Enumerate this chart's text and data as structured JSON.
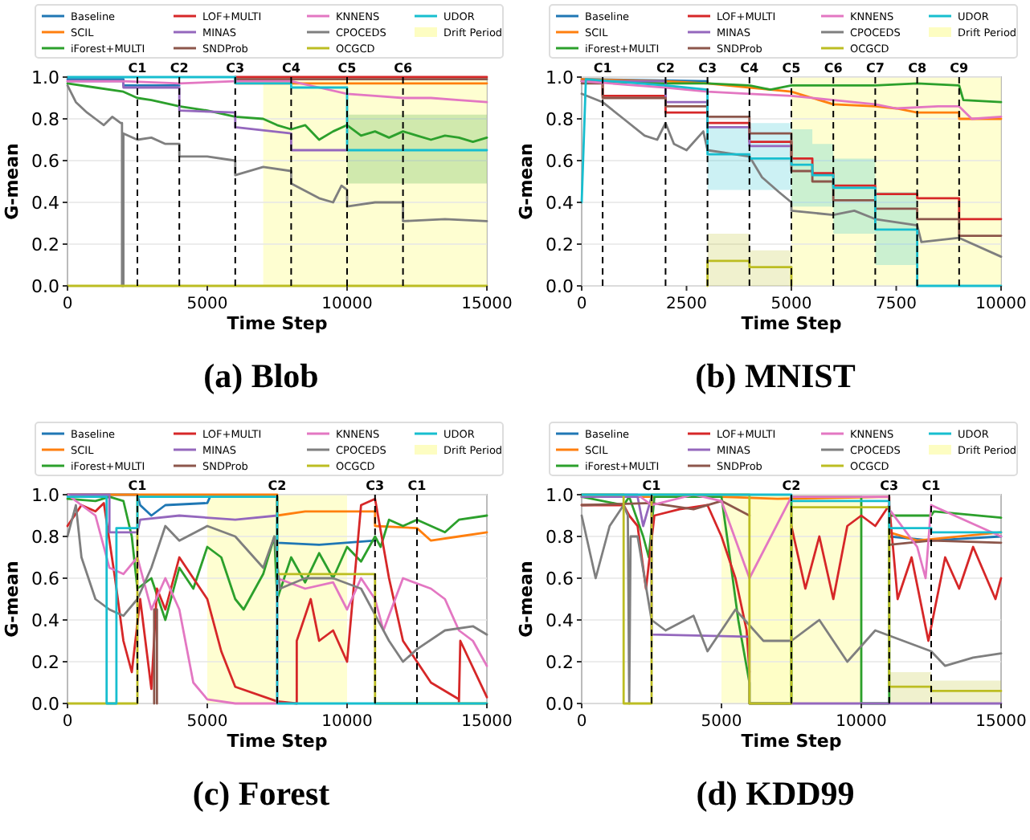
{
  "chart_data": [
    {
      "type": "line",
      "title": "(a) Blob",
      "xlabel": "Time Step",
      "ylabel": "G-mean",
      "xlim": [
        0,
        15000
      ],
      "xticks": [
        0,
        5000,
        10000,
        15000
      ],
      "ylim": [
        0,
        1
      ],
      "yticks": [
        {
          "value": 0,
          "label": "0.0"
        },
        {
          "value": 0.2,
          "label": "0.2"
        },
        {
          "value": 0.4,
          "label": "0.4"
        },
        {
          "value": 0.6,
          "label": "0.6"
        },
        {
          "value": 0.8,
          "label": "0.8"
        },
        {
          "value": 1,
          "label": "1.0"
        }
      ],
      "grid": "y",
      "legend": "top",
      "marker": "none",
      "line_style": "solid",
      "bands": [
        {
          "axis": "x",
          "from": 7000,
          "to": 15000,
          "label": "Drift Period",
          "color": "#fdfdc2"
        }
      ],
      "ref_lines": [
        {
          "axis": "x",
          "value": 2500,
          "label": "C1",
          "color": "#000000",
          "line_style": "dashed"
        },
        {
          "axis": "x",
          "value": 4000,
          "label": "C2",
          "color": "#000000",
          "line_style": "dashed"
        },
        {
          "axis": "x",
          "value": 6000,
          "label": "C3",
          "color": "#000000",
          "line_style": "dashed"
        },
        {
          "axis": "x",
          "value": 8000,
          "label": "C4",
          "color": "#000000",
          "line_style": "dashed"
        },
        {
          "axis": "x",
          "value": 10000,
          "label": "C5",
          "color": "#000000",
          "line_style": "dashed"
        },
        {
          "axis": "x",
          "value": 12000,
          "label": "C6",
          "color": "#000000",
          "line_style": "dashed"
        }
      ],
      "series": [
        {
          "name": "Baseline",
          "color": "#1f77b4",
          "x": [
            0,
            2000,
            2000,
            4000
          ],
          "values": [
            0.99,
            0.99,
            0.96,
            0.96
          ]
        },
        {
          "name": "SCIL",
          "color": "#ff7f0e",
          "x": [
            6000,
            15000
          ],
          "values": [
            0.97,
            0.97
          ]
        },
        {
          "name": "iForest+MULTI",
          "color": "#2ca02c",
          "x": [
            0,
            1000,
            2000,
            2500,
            3000,
            4000,
            5000,
            6000,
            7000,
            7500,
            8000,
            8500,
            9000,
            9500,
            10000,
            10500,
            11000,
            11500,
            12000,
            12500,
            13000,
            13500,
            14000,
            14500,
            15000
          ],
          "values": [
            0.97,
            0.95,
            0.93,
            0.9,
            0.89,
            0.86,
            0.84,
            0.81,
            0.8,
            0.77,
            0.75,
            0.77,
            0.7,
            0.74,
            0.77,
            0.72,
            0.74,
            0.71,
            0.74,
            0.72,
            0.7,
            0.72,
            0.71,
            0.69,
            0.71
          ],
          "lower": [
            null,
            null,
            null,
            null,
            null,
            null,
            null,
            null,
            null,
            null,
            null,
            null,
            null,
            null,
            0.49,
            0.49,
            0.49,
            0.49,
            0.49,
            0.49,
            0.49,
            0.49,
            0.49,
            0.49,
            0.49
          ],
          "upper": [
            null,
            null,
            null,
            null,
            null,
            null,
            null,
            null,
            null,
            null,
            null,
            null,
            null,
            null,
            0.82,
            0.82,
            0.82,
            0.82,
            0.82,
            0.82,
            0.82,
            0.82,
            0.82,
            0.82,
            0.82
          ]
        },
        {
          "name": "LOF+MULTI",
          "color": "#d62728",
          "x": [
            6000,
            15000
          ],
          "values": [
            1,
            1
          ]
        },
        {
          "name": "MINAS",
          "color": "#9467bd",
          "x": [
            0,
            2000,
            2000,
            4000,
            4000,
            6000,
            6000,
            8000,
            8000,
            10000
          ],
          "values": [
            0.98,
            0.98,
            0.95,
            0.95,
            0.84,
            0.83,
            0.76,
            0.73,
            0.65,
            0.65
          ]
        },
        {
          "name": "SNDProb",
          "color": "#8c564b",
          "x": [
            6000,
            15000
          ],
          "values": [
            0.99,
            0.99
          ]
        },
        {
          "name": "KNNENS",
          "color": "#e377c2",
          "x": [
            0,
            2000,
            4000,
            6000,
            8000,
            9000,
            10000,
            11000,
            12000,
            13000,
            14000,
            15000
          ],
          "values": [
            0.98,
            0.98,
            0.97,
            0.98,
            0.98,
            0.95,
            0.92,
            0.91,
            0.9,
            0.9,
            0.89,
            0.88
          ]
        },
        {
          "name": "CPOCEDS",
          "color": "#7f7f7f",
          "x": [
            0,
            300,
            700,
            1000,
            1300,
            1600,
            1900,
            1950,
            1950,
            2000,
            2000,
            2500,
            3000,
            3500,
            4000,
            4000,
            5000,
            6000,
            6000,
            7000,
            8000,
            8000,
            9000,
            9500,
            9800,
            10000,
            10000,
            11000,
            12000,
            12000,
            13500,
            15000
          ],
          "values": [
            0.96,
            0.88,
            0.83,
            0.8,
            0.77,
            0.81,
            0.78,
            0.78,
            0,
            0,
            0.73,
            0.7,
            0.71,
            0.68,
            0.68,
            0.62,
            0.62,
            0.6,
            0.53,
            0.57,
            0.55,
            0.49,
            0.42,
            0.4,
            0.48,
            0.46,
            0.38,
            0.4,
            0.4,
            0.31,
            0.32,
            0.31
          ]
        },
        {
          "name": "OCGCD",
          "color": "#bcbd22",
          "x": [
            0,
            15000
          ],
          "values": [
            0,
            0
          ]
        },
        {
          "name": "UDOR",
          "color": "#17becf",
          "x": [
            0,
            6000,
            6000,
            8000,
            8000,
            10000,
            10000,
            15000
          ],
          "values": [
            1,
            1,
            0.97,
            0.97,
            0.95,
            0.95,
            0.65,
            0.65
          ]
        }
      ]
    },
    {
      "type": "line",
      "title": "(b) MNIST",
      "xlabel": "Time Step",
      "ylabel": "G-mean",
      "xlim": [
        0,
        10000
      ],
      "xticks": [
        0,
        2500,
        5000,
        7500,
        10000
      ],
      "ylim": [
        0,
        1
      ],
      "yticks": [
        {
          "value": 0,
          "label": "0.0"
        },
        {
          "value": 0.2,
          "label": "0.2"
        },
        {
          "value": 0.4,
          "label": "0.4"
        },
        {
          "value": 0.6,
          "label": "0.6"
        },
        {
          "value": 0.8,
          "label": "0.8"
        },
        {
          "value": 1,
          "label": "1.0"
        }
      ],
      "grid": "y",
      "legend": "top",
      "marker": "none",
      "line_style": "solid",
      "bands": [
        {
          "axis": "x",
          "from": 5000,
          "to": 10000,
          "label": "Drift Period",
          "color": "#fdfdc2"
        }
      ],
      "ref_lines": [
        {
          "axis": "x",
          "value": 500,
          "label": "C1",
          "color": "#000000",
          "line_style": "dashed"
        },
        {
          "axis": "x",
          "value": 2000,
          "label": "C2",
          "color": "#000000",
          "line_style": "dashed"
        },
        {
          "axis": "x",
          "value": 3000,
          "label": "C3",
          "color": "#000000",
          "line_style": "dashed"
        },
        {
          "axis": "x",
          "value": 4000,
          "label": "C4",
          "color": "#000000",
          "line_style": "dashed"
        },
        {
          "axis": "x",
          "value": 5000,
          "label": "C5",
          "color": "#000000",
          "line_style": "dashed"
        },
        {
          "axis": "x",
          "value": 6000,
          "label": "C6",
          "color": "#000000",
          "line_style": "dashed"
        },
        {
          "axis": "x",
          "value": 7000,
          "label": "C7",
          "color": "#000000",
          "line_style": "dashed"
        },
        {
          "axis": "x",
          "value": 8000,
          "label": "C8",
          "color": "#000000",
          "line_style": "dashed"
        },
        {
          "axis": "x",
          "value": 9000,
          "label": "C9",
          "color": "#000000",
          "line_style": "dashed"
        }
      ],
      "series": [
        {
          "name": "Baseline",
          "color": "#1f77b4",
          "x": [
            0,
            3000
          ],
          "values": [
            0.99,
            0.98
          ]
        },
        {
          "name": "SCIL",
          "color": "#ff7f0e",
          "x": [
            0,
            2000,
            3000,
            4000,
            5000,
            5500,
            6000,
            7000,
            7500,
            8000,
            9000,
            9000,
            10000
          ],
          "values": [
            0.99,
            0.98,
            0.97,
            0.95,
            0.93,
            0.9,
            0.87,
            0.86,
            0.85,
            0.83,
            0.83,
            0.8,
            0.8
          ]
        },
        {
          "name": "iForest+MULTI",
          "color": "#2ca02c",
          "x": [
            0,
            2000,
            3000,
            4000,
            4500,
            5000,
            6000,
            7000,
            8000,
            9000,
            9100,
            10000
          ],
          "values": [
            0.98,
            0.97,
            0.97,
            0.96,
            0.94,
            0.96,
            0.96,
            0.96,
            0.97,
            0.96,
            0.89,
            0.88
          ]
        },
        {
          "name": "LOF+MULTI",
          "color": "#d62728",
          "x": [
            0,
            500,
            500,
            2000,
            2000,
            3000,
            3000,
            4000,
            4000,
            5000,
            5000,
            5500,
            5500,
            6000,
            6000,
            7000,
            7000,
            8000,
            8000,
            9000,
            9000,
            10000
          ],
          "values": [
            0.98,
            0.98,
            0.91,
            0.91,
            0.83,
            0.83,
            0.78,
            0.78,
            0.69,
            0.69,
            0.61,
            0.61,
            0.54,
            0.54,
            0.48,
            0.48,
            0.44,
            0.44,
            0.42,
            0.42,
            0.32,
            0.32
          ]
        },
        {
          "name": "MINAS",
          "color": "#9467bd",
          "x": [
            0,
            2000,
            2000,
            3000,
            3000,
            4000,
            4000,
            5000
          ],
          "values": [
            0.98,
            0.98,
            0.88,
            0.88,
            0.76,
            0.76,
            0.67,
            0.67
          ]
        },
        {
          "name": "SNDProb",
          "color": "#8c564b",
          "x": [
            0,
            500,
            500,
            2000,
            2000,
            3000,
            3000,
            4000,
            4000,
            5000,
            5000,
            5500,
            5500,
            6000,
            6000,
            7000,
            7000,
            8000,
            8000,
            9000,
            9000,
            10000
          ],
          "values": [
            0.97,
            0.97,
            0.9,
            0.9,
            0.86,
            0.86,
            0.81,
            0.81,
            0.73,
            0.73,
            0.55,
            0.55,
            0.5,
            0.5,
            0.41,
            0.41,
            0.37,
            0.37,
            0.32,
            0.32,
            0.24,
            0.24
          ]
        },
        {
          "name": "KNNENS",
          "color": "#e377c2",
          "x": [
            0,
            2000,
            3000,
            4000,
            5000,
            6000,
            7000,
            7500,
            8500,
            9000,
            9300,
            10000
          ],
          "values": [
            0.98,
            0.95,
            0.93,
            0.92,
            0.91,
            0.89,
            0.87,
            0.85,
            0.86,
            0.86,
            0.8,
            0.81
          ]
        },
        {
          "name": "CPOCEDS",
          "color": "#7f7f7f",
          "x": [
            0,
            500,
            1000,
            1500,
            1800,
            2000,
            2200,
            2500,
            2900,
            3000,
            4000,
            4300,
            4700,
            5000,
            5000,
            6000,
            6500,
            7000,
            8000,
            8100,
            9000,
            10000
          ],
          "values": [
            0.92,
            0.88,
            0.8,
            0.72,
            0.7,
            0.78,
            0.68,
            0.65,
            0.74,
            0.65,
            0.62,
            0.52,
            0.45,
            0.4,
            0.36,
            0.34,
            0.36,
            0.32,
            0.29,
            0.21,
            0.23,
            0.14
          ]
        },
        {
          "name": "OCGCD",
          "color": "#bcbd22",
          "x": [
            3000,
            3000,
            4000,
            4000,
            5000,
            5000
          ],
          "values": [
            0,
            0.12,
            0.12,
            0.09,
            0.09,
            0
          ],
          "lower": [
            null,
            0,
            0,
            0,
            0,
            null
          ],
          "upper": [
            null,
            0.25,
            0.25,
            0.17,
            0.17,
            null
          ]
        },
        {
          "name": "UDOR",
          "color": "#17becf",
          "x": [
            0,
            100,
            2000,
            3000,
            3000,
            4000,
            4000,
            5000,
            5000,
            5500,
            5500,
            6000,
            6000,
            7000,
            7000,
            8000,
            8000,
            10000
          ],
          "values": [
            0.4,
            0.99,
            0.96,
            0.94,
            0.63,
            0.63,
            0.61,
            0.61,
            0.58,
            0.58,
            0.53,
            0.53,
            0.47,
            0.47,
            0.27,
            0.27,
            0,
            0
          ],
          "lower": [
            null,
            null,
            null,
            null,
            0.46,
            0.46,
            0.46,
            0.46,
            0.38,
            0.38,
            0.38,
            0.38,
            0.25,
            0.25,
            0.1,
            0.1,
            null,
            null
          ],
          "upper": [
            null,
            null,
            null,
            null,
            0.76,
            0.76,
            0.78,
            0.78,
            0.75,
            0.75,
            0.68,
            0.68,
            0.61,
            0.61,
            0.45,
            0.45,
            null,
            null
          ]
        }
      ]
    },
    {
      "type": "line",
      "title": "(c) Forest",
      "xlabel": "Time Step",
      "ylabel": "G-mean",
      "xlim": [
        0,
        15000
      ],
      "xticks": [
        0,
        5000,
        10000,
        15000
      ],
      "ylim": [
        0,
        1
      ],
      "yticks": [
        {
          "value": 0,
          "label": "0.0"
        },
        {
          "value": 0.2,
          "label": "0.2"
        },
        {
          "value": 0.4,
          "label": "0.4"
        },
        {
          "value": 0.6,
          "label": "0.6"
        },
        {
          "value": 0.8,
          "label": "0.8"
        },
        {
          "value": 1,
          "label": "1.0"
        }
      ],
      "grid": "y",
      "legend": "top",
      "marker": "none",
      "line_style": "solid",
      "bands": [
        {
          "axis": "x",
          "from": 5000,
          "to": 10000,
          "label": "Drift Period",
          "color": "#fdfdc2"
        }
      ],
      "ref_lines": [
        {
          "axis": "x",
          "value": 2500,
          "label": "C1",
          "color": "#000000",
          "line_style": "dashed"
        },
        {
          "axis": "x",
          "value": 7500,
          "label": "C2",
          "color": "#000000",
          "line_style": "dashed"
        },
        {
          "axis": "x",
          "value": 11000,
          "label": "C3",
          "color": "#000000",
          "line_style": "dashed"
        },
        {
          "axis": "x",
          "value": 12500,
          "label": "C1",
          "color": "#000000",
          "line_style": "dashed"
        }
      ],
      "series": [
        {
          "name": "Baseline",
          "color": "#1f77b4",
          "x": [
            0,
            2500,
            2600,
            3000,
            3500,
            5000,
            5100,
            7500,
            7500,
            9000,
            11000
          ],
          "values": [
            1,
            1,
            0.95,
            0.9,
            0.95,
            0.96,
            0.99,
            0.99,
            0.77,
            0.76,
            0.78
          ]
        },
        {
          "name": "SCIL",
          "color": "#ff7f0e",
          "x": [
            0,
            7500,
            7500,
            8500,
            10000,
            11000,
            11000,
            12500,
            13000,
            14000,
            15000
          ],
          "values": [
            1,
            1,
            0.9,
            0.92,
            0.92,
            0.92,
            0.85,
            0.84,
            0.78,
            0.8,
            0.82
          ]
        },
        {
          "name": "iForest+MULTI",
          "color": "#2ca02c",
          "x": [
            0,
            1000,
            1500,
            2000,
            2300,
            2500,
            3000,
            3500,
            4000,
            4500,
            5000,
            5500,
            6000,
            6300,
            7000,
            7400,
            7500,
            8000,
            8500,
            9000,
            9500,
            10000,
            10500,
            11000,
            11200,
            11500,
            12000,
            12500,
            13500,
            14000,
            15000
          ],
          "values": [
            0.98,
            0.97,
            0.99,
            0.97,
            0.8,
            0.55,
            0.6,
            0.4,
            0.65,
            0.55,
            0.75,
            0.7,
            0.5,
            0.45,
            0.62,
            0.8,
            0.5,
            0.7,
            0.58,
            0.72,
            0.6,
            0.75,
            0.68,
            0.8,
            0.75,
            0.88,
            0.85,
            0.88,
            0.82,
            0.88,
            0.9
          ]
        },
        {
          "name": "LOF+MULTI",
          "color": "#d62728",
          "x": [
            0,
            500,
            1000,
            1300,
            1700,
            2000,
            2300,
            2600,
            3000,
            3200,
            3500,
            4000,
            4500,
            5000,
            5500,
            6000,
            7500,
            8200,
            8200,
            8700,
            9000,
            9500,
            10000,
            10500,
            11000,
            11500,
            12000,
            13000,
            14000,
            14000,
            14050,
            15000
          ],
          "values": [
            0.85,
            0.95,
            0.92,
            0.96,
            0.6,
            0.3,
            0.15,
            0.5,
            0.07,
            0.55,
            0.45,
            0.7,
            0.6,
            0.5,
            0.25,
            0.08,
            0.01,
            0,
            0.3,
            0.5,
            0.3,
            0.35,
            0.2,
            0.95,
            0.98,
            0.6,
            0.3,
            0.1,
            0.02,
            0,
            0.3,
            0.03
          ]
        },
        {
          "name": "MINAS",
          "color": "#9467bd",
          "x": [
            0,
            1500,
            1500,
            2500,
            2600,
            4000,
            6000,
            7500
          ],
          "values": [
            1,
            1,
            0.82,
            0.82,
            0.88,
            0.9,
            0.88,
            0.9
          ]
        },
        {
          "name": "SNDProb",
          "color": "#8c564b",
          "x": [
            3100,
            3100,
            3200,
            3200
          ],
          "values": [
            0,
            0.45,
            0.45,
            0
          ]
        },
        {
          "name": "KNNENS",
          "color": "#e377c2",
          "x": [
            0,
            500,
            1000,
            1500,
            2000,
            2500,
            3000,
            3500,
            4000,
            4500,
            5000,
            6000,
            7500,
            7500,
            8500,
            9500,
            10000,
            10500,
            11000,
            11300,
            12000,
            13000,
            13500,
            14000,
            14500,
            15000
          ],
          "values": [
            1,
            0.95,
            0.9,
            0.65,
            0.62,
            0.7,
            0.45,
            0.6,
            0.45,
            0.1,
            0.02,
            0,
            0,
            0.6,
            0.55,
            0.58,
            0.45,
            0.6,
            0.5,
            0.35,
            0.6,
            0.55,
            0.5,
            0.35,
            0.3,
            0.18
          ]
        },
        {
          "name": "CPOCEDS",
          "color": "#7f7f7f",
          "x": [
            0,
            300,
            500,
            1000,
            1500,
            2000,
            2500,
            3000,
            3500,
            4000,
            5000,
            6000,
            7000,
            7400,
            7600,
            8500,
            9500,
            10500,
            11500,
            12000,
            12500,
            13500,
            14500,
            15000
          ],
          "values": [
            0.8,
            0.95,
            0.7,
            0.5,
            0.45,
            0.42,
            0.5,
            0.65,
            0.85,
            0.78,
            0.85,
            0.8,
            0.65,
            0.8,
            0.55,
            0.6,
            0.6,
            0.55,
            0.3,
            0.2,
            0.26,
            0.35,
            0.37,
            0.33
          ]
        },
        {
          "name": "OCGCD",
          "color": "#bcbd22",
          "x": [
            0,
            2500,
            2500,
            7500,
            7500,
            11000,
            11000,
            15000
          ],
          "values": [
            0,
            0,
            0.99,
            0.99,
            0.62,
            0.62,
            0,
            0
          ]
        },
        {
          "name": "UDOR",
          "color": "#17becf",
          "x": [
            0,
            1400,
            1400,
            1750,
            1750,
            2500,
            2500,
            7500,
            7500,
            15000
          ],
          "values": [
            0.99,
            0.99,
            0,
            0,
            0.84,
            0.84,
            0.99,
            0.99,
            0,
            0
          ]
        }
      ]
    },
    {
      "type": "line",
      "title": "(d) KDD99",
      "xlabel": "Time Step",
      "ylabel": "G-mean",
      "xlim": [
        0,
        15000
      ],
      "xticks": [
        0,
        5000,
        10000,
        15000
      ],
      "ylim": [
        0,
        1
      ],
      "yticks": [
        {
          "value": 0,
          "label": "0.0"
        },
        {
          "value": 0.2,
          "label": "0.2"
        },
        {
          "value": 0.4,
          "label": "0.4"
        },
        {
          "value": 0.6,
          "label": "0.6"
        },
        {
          "value": 0.8,
          "label": "0.8"
        },
        {
          "value": 1,
          "label": "1.0"
        }
      ],
      "grid": "y",
      "legend": "top",
      "marker": "none",
      "line_style": "solid",
      "bands": [
        {
          "axis": "x",
          "from": 5000,
          "to": 7500,
          "label": "Drift Period",
          "color": "#fdfdc2"
        },
        {
          "axis": "x",
          "from": 6000,
          "to": 10000,
          "color": "#fdfdc2"
        }
      ],
      "ref_lines": [
        {
          "axis": "x",
          "value": 2500,
          "label": "C1",
          "color": "#000000",
          "line_style": "dashed"
        },
        {
          "axis": "x",
          "value": 7500,
          "label": "C2",
          "color": "#000000",
          "line_style": "dashed"
        },
        {
          "axis": "x",
          "value": 11000,
          "label": "C3",
          "color": "#000000",
          "line_style": "dashed"
        },
        {
          "axis": "x",
          "value": 12500,
          "label": "C1",
          "color": "#000000",
          "line_style": "dashed"
        }
      ],
      "series": [
        {
          "name": "Baseline",
          "color": "#1f77b4",
          "x": [
            11000,
            12500,
            15000
          ],
          "values": [
            0.8,
            0.78,
            0.8
          ]
        },
        {
          "name": "SCIL",
          "color": "#ff7f0e",
          "x": [
            0,
            5000,
            7000,
            11000,
            11000,
            12000,
            15000
          ],
          "values": [
            0.99,
            0.99,
            0.98,
            0.99,
            0.82,
            0.78,
            0.82
          ]
        },
        {
          "name": "iForest+MULTI",
          "color": "#2ca02c",
          "x": [
            0,
            1500,
            1700,
            2200,
            2400,
            2600,
            5000,
            5300,
            5600,
            6000,
            6000,
            7500,
            7500,
            10000,
            10000,
            11000,
            11000,
            12500,
            12600,
            15000
          ],
          "values": [
            0.99,
            0.95,
            0.99,
            0.8,
            0.7,
            0.99,
            0.99,
            0.7,
            0.4,
            0.1,
            0,
            0,
            0.99,
            0.99,
            0,
            0,
            0.9,
            0.9,
            0.92,
            0.89
          ]
        },
        {
          "name": "LOF+MULTI",
          "color": "#d62728",
          "x": [
            0,
            1500,
            1700,
            2000,
            2300,
            2600,
            3500,
            4500,
            5000,
            5500,
            5900,
            6000,
            6500,
            7500,
            8000,
            8500,
            9000,
            9500,
            10000,
            10500,
            11000,
            11300,
            11800,
            12400,
            13000,
            13500,
            14000,
            14800,
            15000
          ],
          "values": [
            0.95,
            0.95,
            0.9,
            0.85,
            0.55,
            0.9,
            0.93,
            0.95,
            0.8,
            0.6,
            0.35,
            0.15,
            null,
            0.85,
            0.55,
            0.8,
            0.5,
            0.85,
            0.9,
            0.85,
            0.95,
            0.5,
            0.7,
            0.3,
            0.7,
            0.55,
            0.75,
            0.5,
            0.6
          ]
        },
        {
          "name": "MINAS",
          "color": "#9467bd",
          "x": [
            0,
            2000,
            2200,
            2500,
            2500,
            6000,
            6000,
            15000
          ],
          "values": [
            0.99,
            0.99,
            0.85,
            0.99,
            0.33,
            0.32,
            0,
            0
          ]
        },
        {
          "name": "SNDProb",
          "color": "#8c564b",
          "x": [
            0,
            2500,
            4000,
            5000,
            6000,
            8000,
            11000,
            12500,
            15000
          ],
          "values": [
            0.95,
            0.96,
            0.93,
            0.97,
            0.9,
            null,
            0.76,
            0.78,
            0.77
          ]
        },
        {
          "name": "KNNENS",
          "color": "#e377c2",
          "x": [
            0,
            2000,
            2500,
            4000,
            5000,
            6000,
            7500,
            11000,
            11000,
            12000,
            12300,
            12500,
            15000
          ],
          "values": [
            1,
            1,
            0.95,
            1,
            0.97,
            0.6,
            0.99,
            0.99,
            0.93,
            0.75,
            0.6,
            0.95,
            0.8
          ]
        },
        {
          "name": "CPOCEDS",
          "color": "#7f7f7f",
          "x": [
            0,
            500,
            1000,
            1500,
            1650,
            1700,
            1750,
            2000,
            2500,
            3000,
            4000,
            4500,
            5500,
            6500,
            7500,
            8500,
            9500,
            10500,
            11500,
            12500,
            13000,
            14000,
            15000
          ],
          "values": [
            0.9,
            0.6,
            0.85,
            0.95,
            0.9,
            0,
            0.8,
            0.8,
            0.4,
            0.35,
            0.42,
            0.25,
            0.45,
            0.3,
            0.3,
            0.4,
            0.2,
            0.35,
            0.3,
            0.25,
            0.18,
            0.22,
            0.24
          ]
        },
        {
          "name": "OCGCD",
          "color": "#bcbd22",
          "x": [
            0,
            1500,
            1500,
            2500,
            2500,
            6000,
            6000,
            7500,
            7500,
            11000,
            11000,
            12500,
            12500,
            15000
          ],
          "values": [
            1,
            1,
            0,
            0,
            1,
            1,
            0,
            0,
            0.94,
            0.94,
            0.08,
            0.08,
            0.06,
            0.06
          ],
          "lower": [
            null,
            null,
            null,
            null,
            null,
            null,
            null,
            null,
            null,
            null,
            0,
            0,
            0,
            0
          ],
          "upper": [
            null,
            null,
            null,
            null,
            null,
            null,
            null,
            null,
            null,
            null,
            0.15,
            0.15,
            0.11,
            0.11
          ]
        },
        {
          "name": "UDOR",
          "color": "#17becf",
          "x": [
            0,
            7500,
            7500,
            11000,
            11000,
            12500,
            12500,
            15000
          ],
          "values": [
            1,
            1,
            0.97,
            0.97,
            0.84,
            0.84,
            0.82,
            0.82
          ]
        }
      ]
    }
  ]
}
